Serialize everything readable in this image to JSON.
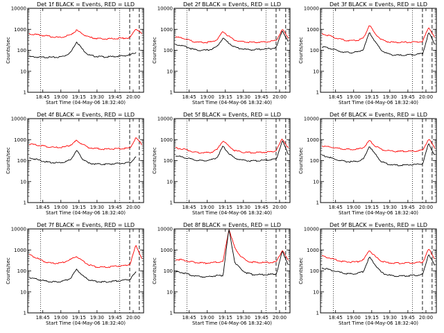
{
  "chart_data": [
    {
      "type": "line",
      "title": "Det 1f BLACK = Events, RED = LLD",
      "xlabel": "Start Time (04-May-06 18:32:40)",
      "ylabel": "Counts/sec",
      "yscale": "log",
      "ylim": [
        1,
        10000
      ],
      "xticks": [
        "18:45",
        "19:00",
        "19:15",
        "19:30",
        "19:45",
        "20:00"
      ],
      "series": [
        {
          "color": "#000000",
          "values": [
            50,
            48,
            46,
            47,
            46,
            47,
            55,
            80,
            260,
            110,
            60,
            52,
            50,
            48,
            50,
            52,
            55,
            60,
            80
          ]
        },
        {
          "color": "#ff0000",
          "values": [
            620,
            560,
            520,
            480,
            430,
            420,
            450,
            560,
            900,
            600,
            420,
            380,
            360,
            350,
            360,
            370,
            380,
            400,
            1100,
            600
          ]
        }
      ]
    },
    {
      "type": "line",
      "title": "Det 2f BLACK = Events, RED = LLD",
      "xlabel": "Start Time (04-May-06 18:32:40)",
      "ylabel": "Counts/sec",
      "yscale": "log",
      "ylim": [
        1,
        10000
      ],
      "xticks": [
        "18:45",
        "19:00",
        "19:15",
        "19:30",
        "19:45",
        "20:00"
      ],
      "series": [
        {
          "color": "#000000",
          "values": [
            190,
            170,
            140,
            110,
            100,
            100,
            110,
            150,
            380,
            220,
            140,
            120,
            110,
            105,
            110,
            115,
            120,
            140,
            900,
            250
          ]
        },
        {
          "color": "#ff0000",
          "values": [
            420,
            400,
            330,
            260,
            240,
            235,
            250,
            330,
            800,
            460,
            300,
            260,
            245,
            240,
            245,
            250,
            260,
            300,
            1000,
            400
          ]
        }
      ]
    },
    {
      "type": "line",
      "title": "Det 3f BLACK = Events, RED = LLD",
      "xlabel": "Start Time (04-May-06 18:32:40)",
      "ylabel": "Counts/sec",
      "yscale": "log",
      "ylim": [
        1,
        10000
      ],
      "xticks": [
        "18:45",
        "19:00",
        "19:15",
        "19:30",
        "19:45",
        "20:00"
      ],
      "series": [
        {
          "color": "#000000",
          "values": [
            150,
            130,
            110,
            90,
            80,
            78,
            82,
            110,
            700,
            250,
            100,
            70,
            60,
            58,
            60,
            62,
            65,
            70,
            700,
            200
          ]
        },
        {
          "color": "#ff0000",
          "values": [
            600,
            520,
            420,
            340,
            300,
            290,
            300,
            380,
            1600,
            600,
            330,
            260,
            240,
            235,
            240,
            245,
            250,
            270,
            1300,
            400
          ]
        }
      ]
    },
    {
      "type": "line",
      "title": "Det 4f BLACK = Events, RED = LLD",
      "xlabel": "Start Time (04-May-06 18:32:40)",
      "ylabel": "Counts/sec",
      "yscale": "log",
      "ylim": [
        1,
        10000
      ],
      "xticks": [
        "18:45",
        "19:00",
        "19:15",
        "19:30",
        "19:45",
        "20:00"
      ],
      "series": [
        {
          "color": "#000000",
          "values": [
            130,
            120,
            100,
            85,
            80,
            80,
            85,
            110,
            300,
            120,
            75,
            70,
            68,
            68,
            70,
            72,
            75,
            80,
            150
          ]
        },
        {
          "color": "#ff0000",
          "values": [
            620,
            560,
            520,
            470,
            430,
            420,
            440,
            560,
            900,
            600,
            420,
            380,
            360,
            350,
            360,
            370,
            380,
            400,
            1200,
            600
          ]
        }
      ]
    },
    {
      "type": "line",
      "title": "Det 5f BLACK = Events, RED = LLD",
      "xlabel": "Start Time (04-May-06 18:32:40)",
      "ylabel": "Counts/sec",
      "yscale": "log",
      "ylim": [
        1,
        10000
      ],
      "xticks": [
        "18:45",
        "19:00",
        "19:15",
        "19:30",
        "19:45",
        "20:00"
      ],
      "series": [
        {
          "color": "#000000",
          "values": [
            170,
            150,
            130,
            110,
            100,
            100,
            110,
            140,
            480,
            220,
            130,
            110,
            100,
            95,
            100,
            105,
            110,
            120,
            900,
            200
          ]
        },
        {
          "color": "#ff0000",
          "values": [
            400,
            370,
            320,
            260,
            240,
            235,
            250,
            330,
            900,
            480,
            300,
            260,
            245,
            240,
            245,
            250,
            260,
            300,
            1100,
            400
          ]
        }
      ]
    },
    {
      "type": "line",
      "title": "Det 6f BLACK = Events, RED = LLD",
      "xlabel": "Start Time (04-May-06 18:32:40)",
      "ylabel": "Counts/sec",
      "yscale": "log",
      "ylim": [
        1,
        10000
      ],
      "xticks": [
        "18:45",
        "19:00",
        "19:15",
        "19:30",
        "19:45",
        "20:00"
      ],
      "series": [
        {
          "color": "#000000",
          "values": [
            180,
            150,
            120,
            100,
            90,
            88,
            92,
            120,
            480,
            200,
            90,
            70,
            62,
            60,
            62,
            64,
            66,
            72,
            650,
            180
          ]
        },
        {
          "color": "#ff0000",
          "values": [
            500,
            460,
            420,
            380,
            350,
            340,
            350,
            420,
            900,
            500,
            340,
            300,
            280,
            275,
            280,
            285,
            290,
            310,
            1100,
            400
          ]
        }
      ]
    },
    {
      "type": "line",
      "title": "Det 7f BLACK = Events, RED = LLD",
      "xlabel": "Start Time (04-May-06 18:32:40)",
      "ylabel": "Counts/sec",
      "yscale": "log",
      "ylim": [
        1,
        10000
      ],
      "xticks": [
        "18:45",
        "19:00",
        "19:15",
        "19:30",
        "19:45",
        "20:00"
      ],
      "series": [
        {
          "color": "#000000",
          "values": [
            50,
            42,
            36,
            32,
            30,
            30,
            34,
            45,
            120,
            60,
            38,
            32,
            30,
            30,
            32,
            34,
            36,
            40,
            90
          ]
        },
        {
          "color": "#ff0000",
          "values": [
            600,
            450,
            320,
            250,
            230,
            230,
            270,
            350,
            500,
            300,
            200,
            160,
            150,
            150,
            160,
            170,
            180,
            210,
            1700,
            400
          ]
        }
      ]
    },
    {
      "type": "line",
      "title": "Det 8f BLACK = Events, RED = LLD",
      "xlabel": "Start Time (04-May-06 18:32:40)",
      "ylabel": "Counts/sec",
      "yscale": "log",
      "ylim": [
        1,
        10000
      ],
      "xticks": [
        "18:45",
        "19:00",
        "19:15",
        "19:30",
        "19:45",
        "20:00"
      ],
      "series": [
        {
          "color": "#000000",
          "values": [
            90,
            85,
            70,
            60,
            55,
            52,
            55,
            60,
            60,
            10000,
            250,
            120,
            80,
            68,
            66,
            66,
            68,
            72,
            850,
            200
          ]
        },
        {
          "color": "#ff0000",
          "values": [
            350,
            340,
            300,
            260,
            240,
            235,
            240,
            270,
            270,
            10000,
            1200,
            500,
            300,
            260,
            250,
            250,
            255,
            270,
            1000,
            300
          ]
        }
      ]
    },
    {
      "type": "line",
      "title": "Det 9f BLACK = Events, RED = LLD",
      "xlabel": "Start Time (04-May-06 18:32:40)",
      "ylabel": "Counts/sec",
      "yscale": "log",
      "ylim": [
        1,
        10000
      ],
      "xticks": [
        "18:45",
        "19:00",
        "19:15",
        "19:30",
        "19:45",
        "20:00"
      ],
      "series": [
        {
          "color": "#000000",
          "values": [
            140,
            120,
            100,
            85,
            75,
            72,
            75,
            95,
            450,
            200,
            85,
            65,
            58,
            56,
            58,
            60,
            62,
            68,
            650,
            180
          ]
        },
        {
          "color": "#ff0000",
          "values": [
            500,
            440,
            360,
            300,
            270,
            265,
            275,
            340,
            950,
            480,
            300,
            250,
            235,
            232,
            235,
            240,
            245,
            265,
            1100,
            380
          ]
        }
      ]
    }
  ]
}
